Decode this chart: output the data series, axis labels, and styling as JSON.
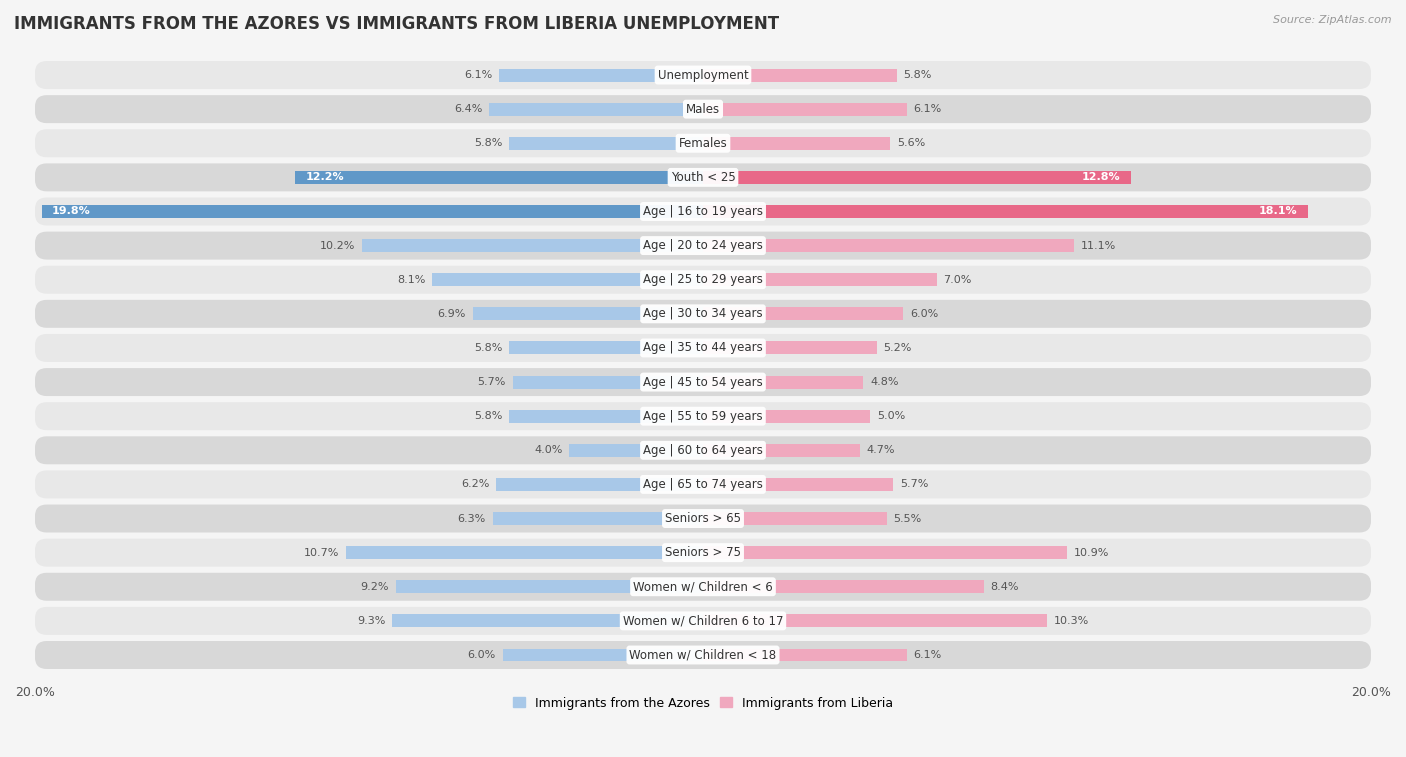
{
  "title": "IMMIGRANTS FROM THE AZORES VS IMMIGRANTS FROM LIBERIA UNEMPLOYMENT",
  "source": "Source: ZipAtlas.com",
  "categories": [
    "Unemployment",
    "Males",
    "Females",
    "Youth < 25",
    "Age | 16 to 19 years",
    "Age | 20 to 24 years",
    "Age | 25 to 29 years",
    "Age | 30 to 34 years",
    "Age | 35 to 44 years",
    "Age | 45 to 54 years",
    "Age | 55 to 59 years",
    "Age | 60 to 64 years",
    "Age | 65 to 74 years",
    "Seniors > 65",
    "Seniors > 75",
    "Women w/ Children < 6",
    "Women w/ Children 6 to 17",
    "Women w/ Children < 18"
  ],
  "azores_values": [
    6.1,
    6.4,
    5.8,
    12.2,
    19.8,
    10.2,
    8.1,
    6.9,
    5.8,
    5.7,
    5.8,
    4.0,
    6.2,
    6.3,
    10.7,
    9.2,
    9.3,
    6.0
  ],
  "liberia_values": [
    5.8,
    6.1,
    5.6,
    12.8,
    18.1,
    11.1,
    7.0,
    6.0,
    5.2,
    4.8,
    5.0,
    4.7,
    5.7,
    5.5,
    10.9,
    8.4,
    10.3,
    6.1
  ],
  "azores_color": "#a8c8e8",
  "liberia_color": "#f0a8be",
  "highlight_azores_color": "#6098c8",
  "highlight_liberia_color": "#e86888",
  "bg_color": "#f5f5f5",
  "row_bg_light": "#e8e8e8",
  "row_bg_dark": "#d8d8d8",
  "axis_max": 20.0,
  "legend_label_azores": "Immigrants from the Azores",
  "legend_label_liberia": "Immigrants from Liberia",
  "title_fontsize": 12,
  "label_fontsize": 8.5,
  "value_fontsize": 8,
  "highlight_rows": [
    "Age | 16 to 19 years",
    "Youth < 25"
  ]
}
